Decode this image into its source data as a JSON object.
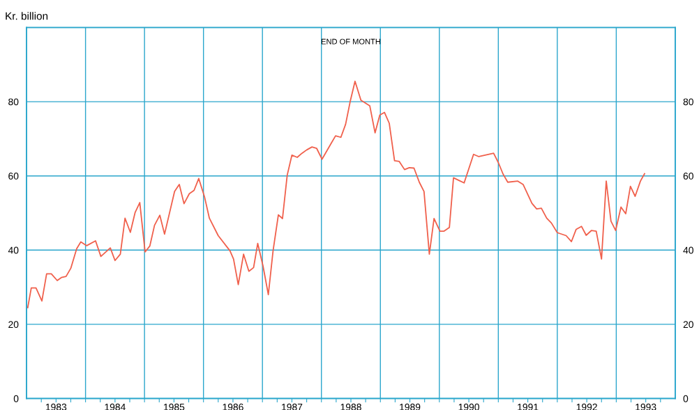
{
  "chart_data": {
    "type": "line",
    "ylabel": "Kr. billion",
    "annotations": [
      "END OF MONTH"
    ],
    "x": [
      1983.02,
      1983.08,
      1983.16,
      1983.26,
      1983.34,
      1983.42,
      1983.52,
      1983.59,
      1983.67,
      1983.75,
      1983.85,
      1983.92,
      1984.02,
      1984.17,
      1984.26,
      1984.42,
      1984.5,
      1984.59,
      1984.67,
      1984.76,
      1984.84,
      1984.92,
      1985.01,
      1985.09,
      1985.17,
      1985.26,
      1985.34,
      1985.51,
      1985.59,
      1985.67,
      1985.76,
      1985.84,
      1985.92,
      1986.02,
      1986.1,
      1986.25,
      1986.45,
      1986.51,
      1986.59,
      1986.68,
      1986.77,
      1986.85,
      1986.92,
      1987.01,
      1987.1,
      1987.18,
      1987.27,
      1987.34,
      1987.42,
      1987.5,
      1987.59,
      1987.67,
      1987.75,
      1987.84,
      1987.92,
      1988.01,
      1988.09,
      1988.17,
      1988.24,
      1988.33,
      1988.41,
      1988.49,
      1988.57,
      1988.67,
      1988.82,
      1988.91,
      1988.99,
      1989.07,
      1989.15,
      1989.24,
      1989.32,
      1989.41,
      1989.49,
      1989.57,
      1989.66,
      1989.74,
      1989.83,
      1989.91,
      1990.01,
      1990.08,
      1990.17,
      1990.24,
      1990.33,
      1990.42,
      1990.58,
      1990.67,
      1990.92,
      1991.0,
      1991.08,
      1991.16,
      1991.33,
      1991.42,
      1991.57,
      1991.65,
      1991.73,
      1991.82,
      1991.9,
      1992.0,
      1992.15,
      1992.24,
      1992.32,
      1992.41,
      1992.49,
      1992.58,
      1992.66,
      1992.75,
      1992.83,
      1992.91,
      1992.99,
      1993.08,
      1993.16,
      1993.24,
      1993.32,
      1993.41,
      1993.48
    ],
    "series": [
      {
        "color": "#f0604c",
        "values": [
          24.5,
          29.8,
          29.8,
          26.3,
          33.6,
          33.6,
          31.8,
          32.6,
          32.9,
          35.1,
          40.4,
          42.2,
          41.2,
          42.5,
          38.3,
          40.6,
          37.2,
          38.9,
          48.6,
          44.8,
          50.1,
          52.8,
          39.5,
          41.1,
          46.7,
          49.4,
          44.3,
          55.8,
          57.7,
          52.5,
          55.2,
          56.1,
          59.3,
          54.2,
          48.6,
          43.9,
          39.8,
          37.6,
          30.7,
          38.9,
          34.3,
          35.3,
          41.8,
          35.7,
          28.0,
          39.8,
          49.5,
          48.5,
          60.2,
          65.6,
          65.0,
          66.1,
          67.0,
          67.8,
          67.4,
          64.5,
          66.7,
          68.9,
          70.8,
          70.4,
          73.9,
          80.2,
          85.5,
          80.4,
          78.9,
          71.6,
          76.4,
          77.1,
          74.2,
          64.1,
          63.9,
          61.7,
          62.2,
          62.1,
          58.3,
          55.8,
          38.9,
          48.5,
          45.1,
          45.1,
          46.1,
          59.5,
          58.8,
          58.1,
          65.8,
          65.2,
          66.1,
          63.6,
          60.5,
          58.3,
          58.6,
          57.7,
          52.6,
          51.1,
          51.3,
          48.6,
          47.3,
          44.7,
          43.9,
          42.3,
          45.6,
          46.4,
          44.0,
          45.3,
          45.1,
          37.6,
          58.6,
          47.8,
          45.3,
          51.6,
          49.8,
          57.2,
          54.5,
          58.6,
          60.6
        ]
      }
    ],
    "xlim": [
      1983,
      1994
    ],
    "ylim": [
      0,
      100
    ],
    "yticks": [
      0,
      20,
      40,
      60,
      80
    ],
    "y2lim": [
      0,
      100
    ],
    "y2ticks": [
      0,
      20,
      40,
      60,
      80
    ],
    "xticks": [
      {
        "value": 1983.25,
        "label": null
      },
      {
        "value": 1983.5,
        "label": "1983"
      },
      {
        "value": 1983.75,
        "label": null
      },
      {
        "value": 1984,
        "label": null
      },
      {
        "value": 1984.25,
        "label": null
      },
      {
        "value": 1984.5,
        "label": "1984"
      },
      {
        "value": 1984.75,
        "label": null
      },
      {
        "value": 1985,
        "label": null
      },
      {
        "value": 1985.25,
        "label": null
      },
      {
        "value": 1985.5,
        "label": "1985"
      },
      {
        "value": 1985.75,
        "label": null
      },
      {
        "value": 1986,
        "label": null
      },
      {
        "value": 1986.25,
        "label": null
      },
      {
        "value": 1986.5,
        "label": "1986"
      },
      {
        "value": 1986.75,
        "label": null
      },
      {
        "value": 1987,
        "label": null
      },
      {
        "value": 1987.25,
        "label": null
      },
      {
        "value": 1987.5,
        "label": "1987"
      },
      {
        "value": 1987.75,
        "label": null
      },
      {
        "value": 1988,
        "label": null
      },
      {
        "value": 1988.25,
        "label": null
      },
      {
        "value": 1988.5,
        "label": "1988"
      },
      {
        "value": 1988.75,
        "label": null
      },
      {
        "value": 1989,
        "label": null
      },
      {
        "value": 1989.25,
        "label": null
      },
      {
        "value": 1989.5,
        "label": "1989"
      },
      {
        "value": 1989.75,
        "label": null
      },
      {
        "value": 1990,
        "label": null
      },
      {
        "value": 1990.25,
        "label": null
      },
      {
        "value": 1990.5,
        "label": "1990"
      },
      {
        "value": 1990.75,
        "label": null
      },
      {
        "value": 1991,
        "label": null
      },
      {
        "value": 1991.25,
        "label": null
      },
      {
        "value": 1991.5,
        "label": "1991"
      },
      {
        "value": 1991.75,
        "label": null
      },
      {
        "value": 1992,
        "label": null
      },
      {
        "value": 1992.25,
        "label": null
      },
      {
        "value": 1992.5,
        "label": "1992"
      },
      {
        "value": 1992.75,
        "label": null
      },
      {
        "value": 1993,
        "label": null
      },
      {
        "value": 1993.25,
        "label": null
      },
      {
        "value": 1993.5,
        "label": "1993"
      },
      {
        "value": 1993.75,
        "label": null
      }
    ],
    "grid": true,
    "line_style": "solid",
    "marker": "none"
  }
}
